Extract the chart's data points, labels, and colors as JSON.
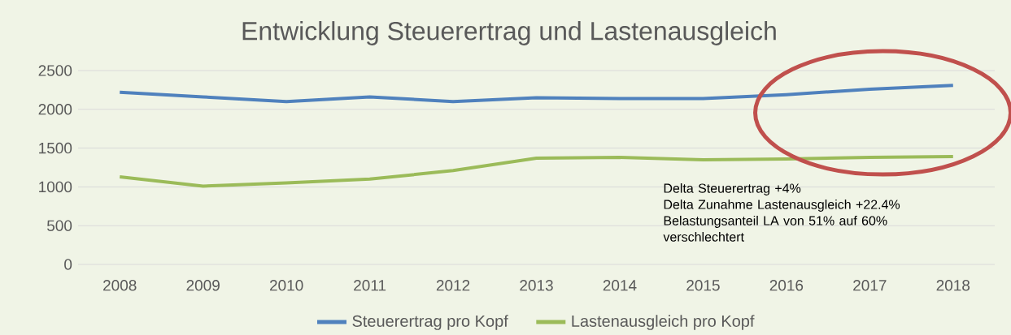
{
  "chart_data": {
    "type": "line",
    "title": "Entwicklung Steuerertrag und Lastenausgleich",
    "categories": [
      "2008",
      "2009",
      "2010",
      "2011",
      "2012",
      "2013",
      "2014",
      "2015",
      "2016",
      "2017",
      "2018"
    ],
    "series": [
      {
        "name": "Steuerertrag pro Kopf",
        "color": "#4f81bd",
        "values": [
          2220,
          2160,
          2100,
          2160,
          2100,
          2150,
          2140,
          2140,
          2190,
          2260,
          2310
        ]
      },
      {
        "name": "Lastenausgleich pro Kopf",
        "color": "#9bbb59",
        "values": [
          1130,
          1010,
          1050,
          1100,
          1210,
          1370,
          1380,
          1350,
          1360,
          1380,
          1390
        ]
      }
    ],
    "ylim": [
      0,
      2500
    ],
    "yticks": [
      0,
      500,
      1000,
      1500,
      2000,
      2500
    ],
    "grid": "y",
    "legend": "bottom",
    "marker": "none",
    "line_style": "solid",
    "annotations": [
      "Delta Steuerertrag +4%",
      "Delta Zunahme Lastenausgleich +22.4%",
      "Belastungsanteil LA von 51% auf 60% verschlechtert"
    ]
  }
}
